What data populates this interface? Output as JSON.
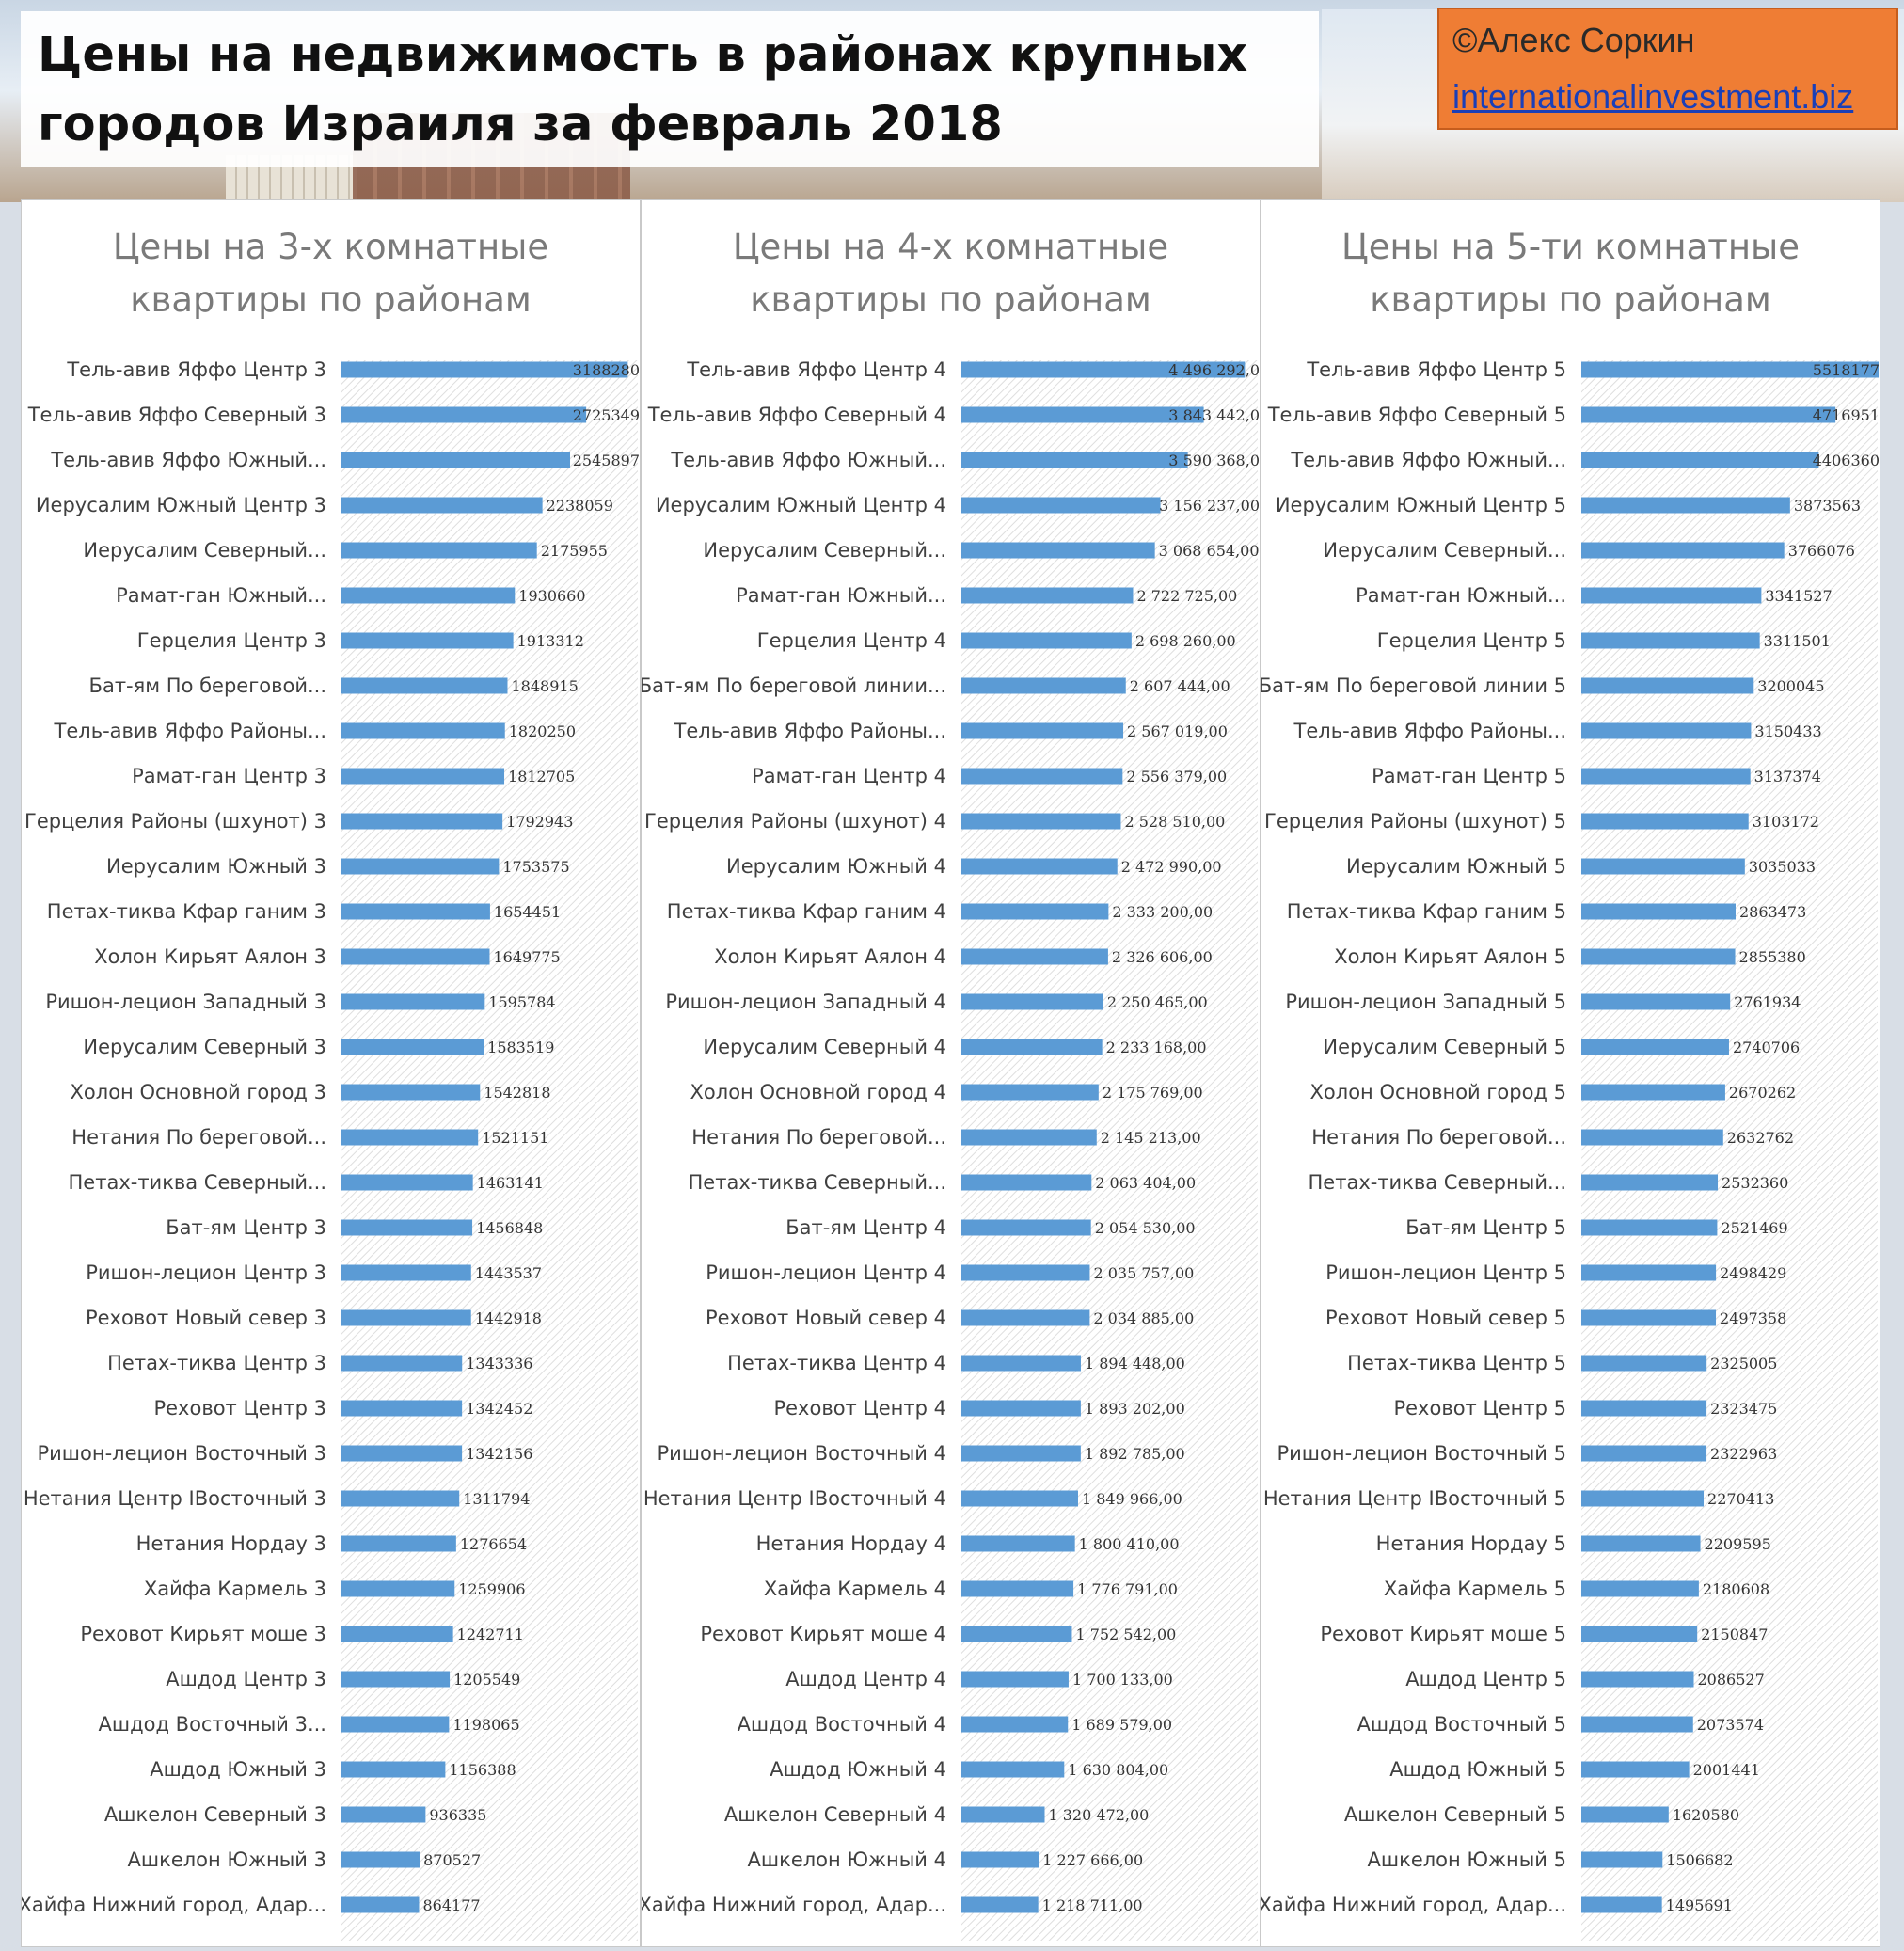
{
  "header": {
    "title": "Цены на недвижимость в районах крупных городов Израиля за февраль 2018",
    "credit_author": "©Алекс Соркин",
    "credit_site": "internationalinvestment.biz"
  },
  "colors": {
    "bar": "#5b9bd5",
    "credit_bg": "#ef7d34"
  },
  "chart_data": [
    {
      "type": "bar",
      "orientation": "horizontal",
      "title": "Цены на 3-х комнатные квартиры по районам",
      "categories": [
        "Тель-авив Яффо Центр 3",
        "Тель-авив Яффо Северный 3",
        "Тель-авив Яффо Южный...",
        "Иерусалим Южный Центр 3",
        "Иерусалим Северный...",
        "Рамат-ган Южный...",
        "Герцелия Центр 3",
        "Бат-ям По береговой...",
        "Тель-авив Яффо Районы...",
        "Рамат-ган Центр 3",
        "Герцелия Районы (шхунот) 3",
        "Иерусалим Южный 3",
        "Петах-тиква Кфар ганим 3",
        "Холон Кирьят Аялон 3",
        "Ришон-лецион Западный 3",
        "Иерусалим Северный 3",
        "Холон Основной город 3",
        "Нетания По береговой...",
        "Петах-тиква Северный...",
        "Бат-ям Центр 3",
        "Ришон-лецион Центр 3",
        "Реховот Новый север 3",
        "Петах-тиква Центр 3",
        "Реховот Центр 3",
        "Ришон-лецион Восточный 3",
        "Нетания Центр IВосточный 3",
        "Нетания Нордау 3",
        "Хайфа Кармель 3",
        "Реховот Кирьят моше 3",
        "Ашдод Центр 3",
        "Ашдод Восточный 3...",
        "Ашдод Южный 3",
        "Ашкелон Северный 3",
        "Ашкелон Южный 3",
        "Хайфа Нижний город, Адар..."
      ],
      "values": [
        3188280,
        2725349,
        2545897,
        2238059,
        2175955,
        1930660,
        1913312,
        1848915,
        1820250,
        1812705,
        1792943,
        1753575,
        1654451,
        1649775,
        1595784,
        1583519,
        1542818,
        1521151,
        1463141,
        1456848,
        1443537,
        1442918,
        1343336,
        1342452,
        1342156,
        1311794,
        1276654,
        1259906,
        1242711,
        1205549,
        1198065,
        1156388,
        936335,
        870527,
        864177
      ],
      "value_labels": [
        "3188280",
        "2725349",
        "2545897",
        "2238059",
        "2175955",
        "1930660",
        "1913312",
        "1848915",
        "1820250",
        "1812705",
        "1792943",
        "1753575",
        "1654451",
        "1649775",
        "1595784",
        "1583519",
        "1542818",
        "1521151",
        "1463141",
        "1456848",
        "1443537",
        "1442918",
        "1343336",
        "1342452",
        "1342156",
        "1311794",
        "1276654",
        "1259906",
        "1242711",
        "1205549",
        "1198065",
        "1156388",
        "936335",
        "870527",
        "864177"
      ],
      "xlim": [
        0,
        3300000
      ]
    },
    {
      "type": "bar",
      "orientation": "horizontal",
      "title": "Цены на 4-х комнатные квартиры по районам",
      "categories": [
        "Тель-авив Яффо Центр 4",
        "Тель-авив Яффо Северный 4",
        "Тель-авив Яффо Южный...",
        "Иерусалим Южный Центр 4",
        "Иерусалим Северный...",
        "Рамат-ган Южный...",
        "Герцелия Центр 4",
        "Бат-ям По береговой линии...",
        "Тель-авив Яффо Районы...",
        "Рамат-ган Центр 4",
        "Герцелия Районы (шхунот) 4",
        "Иерусалим Южный 4",
        "Петах-тиква Кфар ганим 4",
        "Холон Кирьят Аялон 4",
        "Ришон-лецион Западный 4",
        "Иерусалим Северный 4",
        "Холон Основной город 4",
        "Нетания По береговой...",
        "Петах-тиква Северный...",
        "Бат-ям Центр 4",
        "Ришон-лецион Центр 4",
        "Реховот Новый север 4",
        "Петах-тиква Центр 4",
        "Реховот Центр 4",
        "Ришон-лецион Восточный 4",
        "Нетания Центр IВосточный 4",
        "Нетания Нордау 4",
        "Хайфа Кармель 4",
        "Реховот Кирьят моше 4",
        "Ашдод Центр 4",
        "Ашдод Восточный 4",
        "Ашдод Южный 4",
        "Ашкелон Северный 4",
        "Ашкелон Южный 4",
        "Хайфа Нижний город, Адар..."
      ],
      "values": [
        4496292,
        3843442,
        3590368,
        3156237,
        3068654,
        2722725,
        2698260,
        2607444,
        2567019,
        2556379,
        2528510,
        2472990,
        2333200,
        2326606,
        2250465,
        2233168,
        2175769,
        2145213,
        2063404,
        2054530,
        2035757,
        2034885,
        1894448,
        1893202,
        1892785,
        1849966,
        1800410,
        1776791,
        1752542,
        1700133,
        1689579,
        1630804,
        1320472,
        1227666,
        1218711
      ],
      "value_labels": [
        "4 496 292,0",
        "3 843 442,0",
        "3 590 368,0",
        "3 156 237,00",
        "3 068 654,00",
        "2 722 725,00",
        "2 698 260,00",
        "2 607 444,00",
        "2 567 019,00",
        "2 556 379,00",
        "2 528 510,00",
        "2 472 990,00",
        "2 333 200,00",
        "2 326 606,00",
        "2 250 465,00",
        "2 233 168,00",
        "2 175 769,00",
        "2 145 213,00",
        "2 063 404,00",
        "2 054 530,00",
        "2 035 757,00",
        "2 034 885,00",
        "1 894 448,00",
        "1 893 202,00",
        "1 892 785,00",
        "1 849 966,00",
        "1 800 410,00",
        "1 776 791,00",
        "1 752 542,00",
        "1 700 133,00",
        "1 689 579,00",
        "1 630 804,00",
        "1 320 472,00",
        "1 227 666,00",
        "1 218 711,00"
      ],
      "xlim": [
        0,
        4700000
      ]
    },
    {
      "type": "bar",
      "orientation": "horizontal",
      "title": "Цены на 5-ти комнатные квартиры по районам",
      "categories": [
        "Тель-авив Яффо Центр 5",
        "Тель-авив Яффо Северный 5",
        "Тель-авив Яффо Южный...",
        "Иерусалим Южный Центр 5",
        "Иерусалим Северный...",
        "Рамат-ган Южный...",
        "Герцелия Центр 5",
        "Бат-ям По береговой линии 5",
        "Тель-авив Яффо Районы...",
        "Рамат-ган Центр 5",
        "Герцелия Районы (шхунот) 5",
        "Иерусалим Южный 5",
        "Петах-тиква Кфар ганим 5",
        "Холон Кирьят Аялон 5",
        "Ришон-лецион Западный 5",
        "Иерусалим Северный 5",
        "Холон Основной город 5",
        "Нетания По береговой...",
        "Петах-тиква Северный...",
        "Бат-ям Центр 5",
        "Ришон-лецион Центр 5",
        "Реховот Новый север 5",
        "Петах-тиква Центр 5",
        "Реховот Центр 5",
        "Ришон-лецион Восточный 5",
        "Нетания Центр IВосточный 5",
        "Нетания Нордау 5",
        "Хайфа Кармель 5",
        "Реховот Кирьят моше 5",
        "Ашдод Центр 5",
        "Ашдод Восточный 5",
        "Ашдод Южный 5",
        "Ашкелон Северный 5",
        "Ашкелон Южный 5",
        "Хайфа Нижний город, Адар..."
      ],
      "values": [
        5518177,
        4716951,
        4406360,
        3873563,
        3766076,
        3341527,
        3311501,
        3200045,
        3150433,
        3137374,
        3103172,
        3035033,
        2863473,
        2855380,
        2761934,
        2740706,
        2670262,
        2632762,
        2532360,
        2521469,
        2498429,
        2497358,
        2325005,
        2323475,
        2322963,
        2270413,
        2209595,
        2180608,
        2150847,
        2086527,
        2073574,
        2001441,
        1620580,
        1506682,
        1495691
      ],
      "value_labels": [
        "5518177",
        "4716951",
        "4406360",
        "3873563",
        "3766076",
        "3341527",
        "3311501",
        "3200045",
        "3150433",
        "3137374",
        "3103172",
        "3035033",
        "2863473",
        "2855380",
        "2761934",
        "2740706",
        "2670262",
        "2632762",
        "2532360",
        "2521469",
        "2498429",
        "2497358",
        "2325005",
        "2323475",
        "2322963",
        "2270413",
        "2209595",
        "2180608",
        "2150847",
        "2086527",
        "2073574",
        "2001441",
        "1620580",
        "1506682",
        "1495691"
      ],
      "xlim": [
        0,
        5500000
      ]
    }
  ]
}
